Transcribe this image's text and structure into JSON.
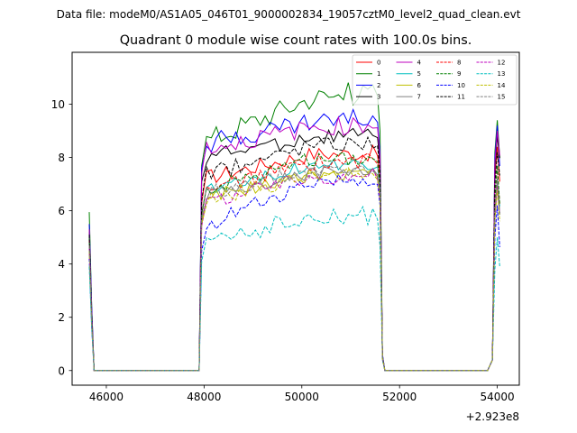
{
  "suptitle": "Data file: modeM0/AS1A05_046T01_9000002834_19057cztM0_level2_quad_clean.evt",
  "chart_data": {
    "type": "line",
    "title": "Quadrant 0 module wise count rates with 100.0s bins.",
    "xlabel": "",
    "ylabel": "",
    "x_offset_label": "+2.923e8",
    "xlim": [
      45300,
      54450
    ],
    "ylim": [
      -0.55,
      11.95
    ],
    "xticks": [
      46000,
      48000,
      50000,
      52000,
      54000
    ],
    "xtick_labels": [
      "46000",
      "48000",
      "50000",
      "52000",
      "54000"
    ],
    "yticks": [
      0,
      2,
      4,
      6,
      8,
      10
    ],
    "ytick_labels": [
      "0",
      "2",
      "4",
      "6",
      "8",
      "10"
    ],
    "grid": false,
    "legend_location": "top-right",
    "segments": [
      {
        "start": 45650,
        "end": 45750
      },
      {
        "start": 47950,
        "end": 51650
      },
      {
        "start": 53950,
        "end": 54050
      }
    ],
    "series": [
      {
        "name": "0",
        "color": "#ff0000",
        "dash": "solid",
        "rise": 7.2,
        "level": 8.1,
        "slope": 0.05,
        "amp": 0.3,
        "tail": 8.4,
        "start_val": 5.3,
        "late_val": 0.5
      },
      {
        "name": "1",
        "color": "#008000",
        "dash": "solid",
        "rise": 8.6,
        "level": 10.0,
        "slope": 0.45,
        "amp": 0.45,
        "tail": 9.4,
        "start_val": 5.95,
        "late_val": 0.6
      },
      {
        "name": "2",
        "color": "#0000ff",
        "dash": "solid",
        "rise": 8.5,
        "level": 9.1,
        "slope": 0.35,
        "amp": 0.4,
        "tail": 9.2,
        "start_val": 5.5,
        "late_val": 0.6
      },
      {
        "name": "3",
        "color": "#000000",
        "dash": "solid",
        "rise": 8.0,
        "level": 8.6,
        "slope": 0.25,
        "amp": 0.3,
        "tail": 8.8,
        "start_val": 5.2,
        "late_val": 0.5
      },
      {
        "name": "4",
        "color": "#bf00bf",
        "dash": "solid",
        "rise": 8.3,
        "level": 8.9,
        "slope": 0.35,
        "amp": 0.35,
        "tail": 9.0,
        "start_val": 5.3,
        "late_val": 0.55
      },
      {
        "name": "5",
        "color": "#00bfbf",
        "dash": "solid",
        "rise": 6.8,
        "level": 7.6,
        "slope": 0.15,
        "amp": 0.25,
        "tail": 7.2,
        "start_val": 4.8,
        "late_val": 0.5
      },
      {
        "name": "6",
        "color": "#bfbf00",
        "dash": "solid",
        "rise": 6.5,
        "level": 7.2,
        "slope": 0.15,
        "amp": 0.25,
        "tail": 7.0,
        "start_val": 4.6,
        "late_val": 0.45
      },
      {
        "name": "7",
        "color": "#808080",
        "dash": "solid",
        "rise": 6.6,
        "level": 7.3,
        "slope": 0.15,
        "amp": 0.25,
        "tail": 7.1,
        "start_val": 4.7,
        "late_val": 0.45
      },
      {
        "name": "8",
        "color": "#ff0000",
        "dash": "dashed",
        "rise": 6.7,
        "level": 7.7,
        "slope": 0.2,
        "amp": 0.3,
        "tail": 7.6,
        "start_val": 4.9,
        "late_val": 0.5
      },
      {
        "name": "9",
        "color": "#008000",
        "dash": "dashed",
        "rise": 6.8,
        "level": 7.8,
        "slope": 0.2,
        "amp": 0.3,
        "tail": 7.7,
        "start_val": 5.0,
        "late_val": 0.5
      },
      {
        "name": "10",
        "color": "#0000ff",
        "dash": "dashed",
        "rise": 5.4,
        "level": 6.9,
        "slope": 0.25,
        "amp": 0.3,
        "tail": 6.2,
        "start_val": 4.2,
        "late_val": 0.4
      },
      {
        "name": "11",
        "color": "#000000",
        "dash": "dashed",
        "rise": 7.3,
        "level": 8.3,
        "slope": 0.3,
        "amp": 0.3,
        "tail": 8.2,
        "start_val": 5.1,
        "late_val": 0.5
      },
      {
        "name": "12",
        "color": "#bf00bf",
        "dash": "dashed",
        "rise": 6.3,
        "level": 7.1,
        "slope": 0.25,
        "amp": 0.3,
        "tail": 6.9,
        "start_val": 4.6,
        "late_val": 0.45
      },
      {
        "name": "13",
        "color": "#00bfbf",
        "dash": "dashed",
        "rise": 5.0,
        "level": 5.2,
        "slope": 0.7,
        "amp": 0.4,
        "tail": 5.0,
        "start_val": 3.9,
        "late_val": 0.4
      },
      {
        "name": "14",
        "color": "#bfbf00",
        "dash": "dashed",
        "rise": 6.4,
        "level": 7.2,
        "slope": 0.15,
        "amp": 0.3,
        "tail": 6.8,
        "start_val": 4.5,
        "late_val": 0.45
      },
      {
        "name": "15",
        "color": "#808080",
        "dash": "dashed",
        "rise": 6.6,
        "level": 7.4,
        "slope": 0.15,
        "amp": 0.3,
        "tail": 7.2,
        "start_val": 4.7,
        "late_val": 0.45
      }
    ]
  }
}
